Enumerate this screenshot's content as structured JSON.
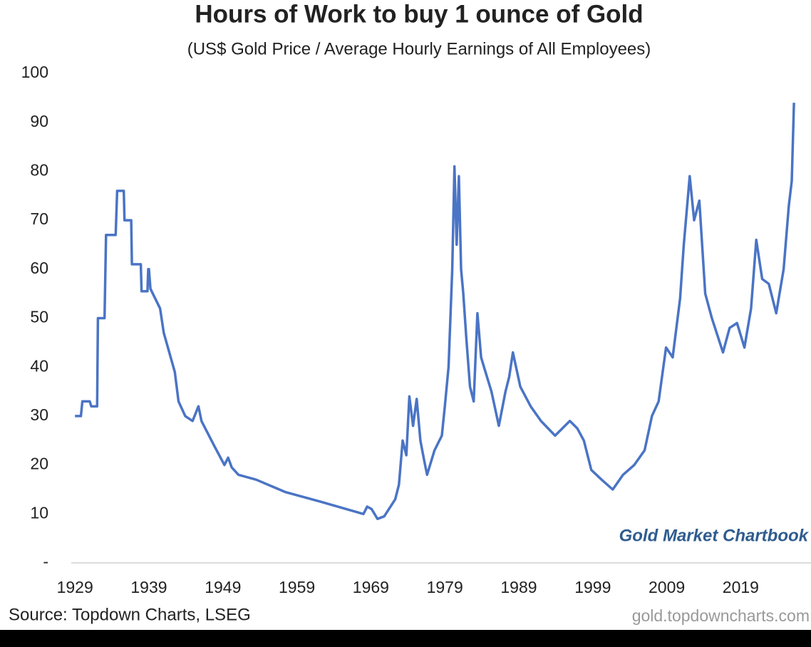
{
  "chart_data": {
    "type": "line",
    "title": "Hours of Work to buy 1 ounce of Gold",
    "subtitle": "(US$ Gold Price / Average Hourly Earnings of All Employees)",
    "watermark": "Gold Market Chartbook",
    "source": "Source: Topdown Charts, LSEG",
    "url": "gold.topdowncharts.com",
    "color": "#4a74c5",
    "xlim": [
      1928.5,
      2028.5
    ],
    "xticks": [
      1929,
      1939,
      1949,
      1959,
      1969,
      1979,
      1989,
      1999,
      2009,
      2019
    ],
    "ylim": [
      0,
      100
    ],
    "yticks": [
      {
        "value": 0,
        "label": "-"
      },
      10,
      20,
      30,
      40,
      50,
      60,
      70,
      80,
      90,
      100
    ],
    "grid": false,
    "x": [
      1929,
      1929.8,
      1930,
      1931,
      1931.2,
      1932,
      1932.1,
      1933,
      1933.2,
      1934.5,
      1934.7,
      1935.6,
      1935.7,
      1936.6,
      1936.7,
      1937.9,
      1938,
      1938.8,
      1938.9,
      1939,
      1939.2,
      1940.5,
      1941,
      1942.5,
      1943,
      1943.9,
      1944.9,
      1945.7,
      1946.1,
      1947.8,
      1949.2,
      1949.7,
      1950.2,
      1951.1,
      1953.5,
      1957.4,
      1962.2,
      1968.0,
      1968.5,
      1969.1,
      1969.9,
      1970.8,
      1972.3,
      1972.8,
      1973.3,
      1973.8,
      1974.2,
      1974.7,
      1975.2,
      1975.7,
      1976.2,
      1976.6,
      1977.6,
      1978.6,
      1979.0,
      1979.5,
      1980.0,
      1980.3,
      1980.6,
      1980.9,
      1981.2,
      1981.5,
      1981.9,
      1982.4,
      1982.9,
      1983.4,
      1983.9,
      1984.3,
      1985.3,
      1986.3,
      1987.2,
      1987.7,
      1988.2,
      1989.2,
      1990.6,
      1992.0,
      1993.9,
      1995.9,
      1996.9,
      1997.8,
      1998.8,
      2000.2,
      2001.7,
      2003.1,
      2004.6,
      2006.0,
      2007.0,
      2007.9,
      2008.9,
      2009.8,
      2010.8,
      2011.3,
      2012.1,
      2012.7,
      2013.4,
      2014.2,
      2015.1,
      2016.6,
      2017.5,
      2018.5,
      2019.5,
      2020.4,
      2021.1,
      2021.9,
      2022.8,
      2023.8,
      2024.8,
      2025.5,
      2025.9,
      2026.2
    ],
    "values": [
      30,
      30,
      33,
      33,
      32,
      32,
      50,
      50,
      67,
      67,
      76,
      76,
      70,
      70,
      61,
      61,
      55.5,
      55.5,
      60,
      60,
      56,
      52,
      47,
      39,
      33,
      30,
      29,
      32,
      29,
      24,
      20,
      21.5,
      19.5,
      18,
      17,
      14.5,
      12.5,
      10,
      11.5,
      11,
      9,
      9.5,
      13,
      16,
      25,
      22,
      34,
      28,
      33.5,
      25,
      21,
      18,
      23,
      26,
      32,
      40,
      60,
      81,
      65,
      79,
      60,
      55,
      46,
      36,
      33,
      51,
      42,
      40,
      35,
      28,
      35,
      38,
      43,
      36,
      32,
      29,
      26,
      29,
      27.5,
      25,
      19,
      17,
      15,
      18,
      20,
      23,
      30,
      33,
      44,
      42,
      54,
      65,
      79,
      70,
      74,
      55,
      50,
      43,
      48,
      49,
      44,
      52,
      66,
      58,
      57,
      51,
      60,
      73,
      78,
      94
    ]
  }
}
